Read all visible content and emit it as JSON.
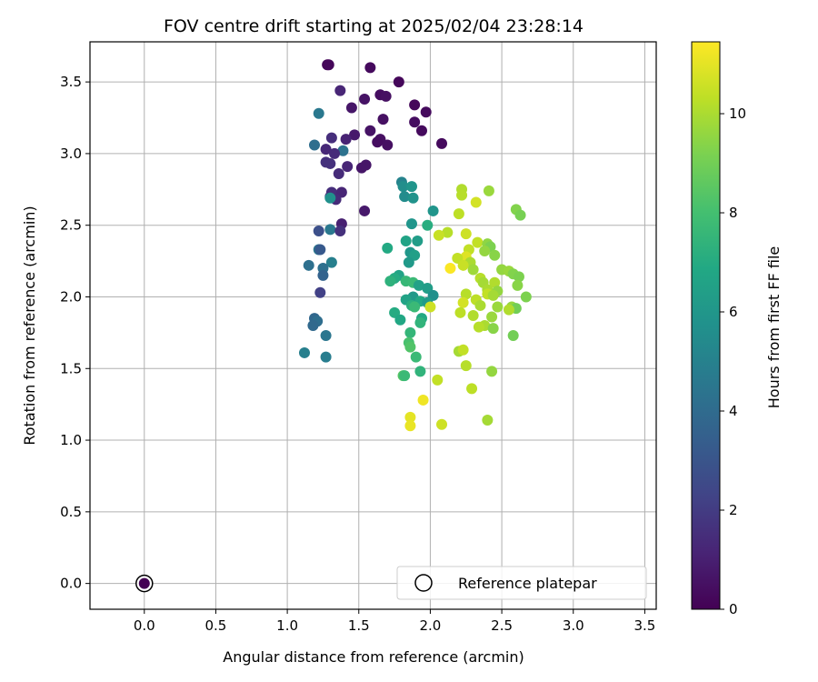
{
  "chart_data": {
    "type": "scatter",
    "title": "FOV centre drift starting at 2025/02/04 23:28:14",
    "xlabel": "Angular distance from reference (arcmin)",
    "ylabel": "Rotation from reference (arcmin)",
    "xlim": [
      -0.38,
      3.58
    ],
    "ylim": [
      -0.18,
      3.78
    ],
    "xticks": [
      0.0,
      0.5,
      1.0,
      1.5,
      2.0,
      2.5,
      3.0,
      3.5
    ],
    "xtick_labels": [
      "0.0",
      "0.5",
      "1.0",
      "1.5",
      "2.0",
      "2.5",
      "3.0",
      "3.5"
    ],
    "yticks": [
      0.0,
      0.5,
      1.0,
      1.5,
      2.0,
      2.5,
      3.0,
      3.5
    ],
    "ytick_labels": [
      "0.0",
      "0.5",
      "1.0",
      "1.5",
      "2.0",
      "2.5",
      "3.0",
      "3.5"
    ],
    "grid": true,
    "colormap": "viridis",
    "colorbar": {
      "label": "Hours from first FF file",
      "range": [
        0,
        11.45
      ],
      "ticks": [
        0,
        2,
        4,
        6,
        8,
        10
      ],
      "tick_labels": [
        "0",
        "2",
        "4",
        "6",
        "8",
        "10"
      ]
    },
    "legend": {
      "position": "bottom-right",
      "entries": [
        "Reference platepar"
      ]
    },
    "reference_point": {
      "x": 0.0,
      "y": 0.0,
      "label": "Reference platepar",
      "color": "#440154"
    },
    "points": [
      {
        "x": 1.28,
        "y": 3.62,
        "c": 0.1
      },
      {
        "x": 1.29,
        "y": 3.62,
        "c": 0.2
      },
      {
        "x": 1.58,
        "y": 3.6,
        "c": 0.3
      },
      {
        "x": 1.78,
        "y": 3.5,
        "c": 0.2
      },
      {
        "x": 1.37,
        "y": 3.44,
        "c": 1.2
      },
      {
        "x": 1.65,
        "y": 3.41,
        "c": 0.4
      },
      {
        "x": 1.69,
        "y": 3.4,
        "c": 0.5
      },
      {
        "x": 1.54,
        "y": 3.38,
        "c": 0.6
      },
      {
        "x": 1.89,
        "y": 3.34,
        "c": 0.2
      },
      {
        "x": 1.45,
        "y": 3.32,
        "c": 0.7
      },
      {
        "x": 1.97,
        "y": 3.29,
        "c": 0.3
      },
      {
        "x": 1.22,
        "y": 3.28,
        "c": 4.6
      },
      {
        "x": 1.67,
        "y": 3.24,
        "c": 0.5
      },
      {
        "x": 1.89,
        "y": 3.22,
        "c": 0.4
      },
      {
        "x": 1.94,
        "y": 3.16,
        "c": 0.3
      },
      {
        "x": 1.58,
        "y": 3.16,
        "c": 0.6
      },
      {
        "x": 1.47,
        "y": 3.13,
        "c": 0.8
      },
      {
        "x": 1.31,
        "y": 3.11,
        "c": 1.5
      },
      {
        "x": 1.41,
        "y": 3.1,
        "c": 1.1
      },
      {
        "x": 1.65,
        "y": 3.1,
        "c": 0.5
      },
      {
        "x": 1.63,
        "y": 3.08,
        "c": 0.4
      },
      {
        "x": 2.08,
        "y": 3.07,
        "c": 0.3
      },
      {
        "x": 1.19,
        "y": 3.06,
        "c": 4.1
      },
      {
        "x": 1.7,
        "y": 3.06,
        "c": 0.5
      },
      {
        "x": 1.27,
        "y": 3.03,
        "c": 1.3
      },
      {
        "x": 1.39,
        "y": 3.02,
        "c": 4.3
      },
      {
        "x": 1.33,
        "y": 3.0,
        "c": 1.4
      },
      {
        "x": 1.27,
        "y": 2.94,
        "c": 1.6
      },
      {
        "x": 1.3,
        "y": 2.93,
        "c": 1.6
      },
      {
        "x": 1.55,
        "y": 2.92,
        "c": 0.7
      },
      {
        "x": 1.42,
        "y": 2.91,
        "c": 1.2
      },
      {
        "x": 1.52,
        "y": 2.9,
        "c": 0.7
      },
      {
        "x": 1.36,
        "y": 2.86,
        "c": 1.4
      },
      {
        "x": 1.31,
        "y": 2.73,
        "c": 1.5
      },
      {
        "x": 1.38,
        "y": 2.73,
        "c": 1.2
      },
      {
        "x": 1.3,
        "y": 2.7,
        "c": 1.5
      },
      {
        "x": 1.34,
        "y": 2.68,
        "c": 1.4
      },
      {
        "x": 1.3,
        "y": 2.69,
        "c": 5.7
      },
      {
        "x": 1.54,
        "y": 2.6,
        "c": 0.8
      },
      {
        "x": 1.38,
        "y": 2.51,
        "c": 1.0
      },
      {
        "x": 1.3,
        "y": 2.47,
        "c": 4.6
      },
      {
        "x": 1.22,
        "y": 2.46,
        "c": 2.8
      },
      {
        "x": 1.37,
        "y": 2.46,
        "c": 1.6
      },
      {
        "x": 1.22,
        "y": 2.33,
        "c": 4.5
      },
      {
        "x": 1.23,
        "y": 2.33,
        "c": 3.2
      },
      {
        "x": 1.31,
        "y": 2.24,
        "c": 4.9
      },
      {
        "x": 1.15,
        "y": 2.22,
        "c": 4.2
      },
      {
        "x": 1.25,
        "y": 2.2,
        "c": 4.2
      },
      {
        "x": 1.25,
        "y": 2.15,
        "c": 3.6
      },
      {
        "x": 1.23,
        "y": 2.03,
        "c": 2.2
      },
      {
        "x": 1.19,
        "y": 1.85,
        "c": 3.8
      },
      {
        "x": 1.21,
        "y": 1.83,
        "c": 4.1
      },
      {
        "x": 1.18,
        "y": 1.8,
        "c": 3.9
      },
      {
        "x": 1.27,
        "y": 1.73,
        "c": 4.5
      },
      {
        "x": 1.12,
        "y": 1.61,
        "c": 4.9
      },
      {
        "x": 1.27,
        "y": 1.58,
        "c": 4.8
      },
      {
        "x": 1.8,
        "y": 2.8,
        "c": 5.1
      },
      {
        "x": 1.81,
        "y": 2.77,
        "c": 5.6
      },
      {
        "x": 1.87,
        "y": 2.77,
        "c": 5.9
      },
      {
        "x": 1.82,
        "y": 2.7,
        "c": 5.5
      },
      {
        "x": 1.88,
        "y": 2.69,
        "c": 5.8
      },
      {
        "x": 2.02,
        "y": 2.6,
        "c": 5.9
      },
      {
        "x": 1.87,
        "y": 2.51,
        "c": 5.9
      },
      {
        "x": 1.98,
        "y": 2.5,
        "c": 7.1
      },
      {
        "x": 1.91,
        "y": 2.39,
        "c": 6.3
      },
      {
        "x": 1.83,
        "y": 2.39,
        "c": 6.6
      },
      {
        "x": 1.7,
        "y": 2.34,
        "c": 6.9
      },
      {
        "x": 1.86,
        "y": 2.31,
        "c": 6.0
      },
      {
        "x": 1.89,
        "y": 2.29,
        "c": 6.4
      },
      {
        "x": 1.85,
        "y": 2.24,
        "c": 6.1
      },
      {
        "x": 1.78,
        "y": 2.15,
        "c": 6.6
      },
      {
        "x": 1.75,
        "y": 2.13,
        "c": 7.0
      },
      {
        "x": 1.72,
        "y": 2.11,
        "c": 7.3
      },
      {
        "x": 1.83,
        "y": 2.11,
        "c": 7.6
      },
      {
        "x": 1.88,
        "y": 2.1,
        "c": 7.7
      },
      {
        "x": 1.92,
        "y": 2.08,
        "c": 6.5
      },
      {
        "x": 1.98,
        "y": 2.06,
        "c": 6.3
      },
      {
        "x": 2.02,
        "y": 2.01,
        "c": 5.7
      },
      {
        "x": 1.88,
        "y": 2.0,
        "c": 6.1
      },
      {
        "x": 1.83,
        "y": 1.98,
        "c": 6.6
      },
      {
        "x": 1.93,
        "y": 1.97,
        "c": 6.9
      },
      {
        "x": 1.98,
        "y": 1.96,
        "c": 6.2
      },
      {
        "x": 1.87,
        "y": 1.94,
        "c": 7.2
      },
      {
        "x": 1.89,
        "y": 1.93,
        "c": 7.7
      },
      {
        "x": 1.75,
        "y": 1.89,
        "c": 7.0
      },
      {
        "x": 1.79,
        "y": 1.84,
        "c": 6.8
      },
      {
        "x": 1.94,
        "y": 1.85,
        "c": 6.9
      },
      {
        "x": 1.93,
        "y": 1.82,
        "c": 7.4
      },
      {
        "x": 1.86,
        "y": 1.75,
        "c": 7.5
      },
      {
        "x": 1.85,
        "y": 1.68,
        "c": 8.1
      },
      {
        "x": 1.86,
        "y": 1.65,
        "c": 8.3
      },
      {
        "x": 1.9,
        "y": 1.58,
        "c": 7.7
      },
      {
        "x": 1.93,
        "y": 1.48,
        "c": 7.4
      },
      {
        "x": 1.81,
        "y": 1.45,
        "c": 8.4
      },
      {
        "x": 1.82,
        "y": 1.45,
        "c": 7.7
      },
      {
        "x": 2.0,
        "y": 1.93,
        "c": 10.6
      },
      {
        "x": 2.22,
        "y": 2.75,
        "c": 10.1
      },
      {
        "x": 2.22,
        "y": 2.71,
        "c": 10.2
      },
      {
        "x": 2.41,
        "y": 2.74,
        "c": 9.7
      },
      {
        "x": 2.32,
        "y": 2.66,
        "c": 10.7
      },
      {
        "x": 2.6,
        "y": 2.61,
        "c": 9.3
      },
      {
        "x": 2.63,
        "y": 2.57,
        "c": 9.1
      },
      {
        "x": 2.2,
        "y": 2.58,
        "c": 10.3
      },
      {
        "x": 2.12,
        "y": 2.45,
        "c": 10.2
      },
      {
        "x": 2.06,
        "y": 2.43,
        "c": 10.5
      },
      {
        "x": 2.25,
        "y": 2.44,
        "c": 10.6
      },
      {
        "x": 2.33,
        "y": 2.38,
        "c": 10.4
      },
      {
        "x": 2.4,
        "y": 2.37,
        "c": 9.5
      },
      {
        "x": 2.42,
        "y": 2.35,
        "c": 9.2
      },
      {
        "x": 2.27,
        "y": 2.33,
        "c": 10.4
      },
      {
        "x": 2.38,
        "y": 2.32,
        "c": 9.6
      },
      {
        "x": 2.25,
        "y": 2.28,
        "c": 10.9
      },
      {
        "x": 2.19,
        "y": 2.27,
        "c": 10.4
      },
      {
        "x": 2.45,
        "y": 2.29,
        "c": 9.4
      },
      {
        "x": 2.28,
        "y": 2.24,
        "c": 10.0
      },
      {
        "x": 2.23,
        "y": 2.22,
        "c": 10.5
      },
      {
        "x": 2.14,
        "y": 2.2,
        "c": 11.4
      },
      {
        "x": 2.5,
        "y": 2.19,
        "c": 9.6
      },
      {
        "x": 2.3,
        "y": 2.19,
        "c": 9.8
      },
      {
        "x": 2.55,
        "y": 2.18,
        "c": 9.7
      },
      {
        "x": 2.58,
        "y": 2.16,
        "c": 9.3
      },
      {
        "x": 2.62,
        "y": 2.14,
        "c": 9.2
      },
      {
        "x": 2.35,
        "y": 2.13,
        "c": 10.2
      },
      {
        "x": 2.37,
        "y": 2.1,
        "c": 9.9
      },
      {
        "x": 2.45,
        "y": 2.1,
        "c": 10.1
      },
      {
        "x": 2.61,
        "y": 2.08,
        "c": 9.4
      },
      {
        "x": 2.4,
        "y": 2.05,
        "c": 10.0
      },
      {
        "x": 2.47,
        "y": 2.04,
        "c": 9.6
      },
      {
        "x": 2.25,
        "y": 2.02,
        "c": 10.2
      },
      {
        "x": 2.4,
        "y": 2.02,
        "c": 10.4
      },
      {
        "x": 2.44,
        "y": 2.01,
        "c": 9.9
      },
      {
        "x": 2.67,
        "y": 2.0,
        "c": 9.2
      },
      {
        "x": 2.32,
        "y": 1.98,
        "c": 10.3
      },
      {
        "x": 2.23,
        "y": 1.96,
        "c": 10.7
      },
      {
        "x": 2.35,
        "y": 1.94,
        "c": 10.0
      },
      {
        "x": 2.47,
        "y": 1.93,
        "c": 9.7
      },
      {
        "x": 2.57,
        "y": 1.93,
        "c": 9.6
      },
      {
        "x": 2.6,
        "y": 1.92,
        "c": 9.0
      },
      {
        "x": 2.55,
        "y": 1.91,
        "c": 10.1
      },
      {
        "x": 2.21,
        "y": 1.89,
        "c": 10.3
      },
      {
        "x": 2.3,
        "y": 1.87,
        "c": 10.1
      },
      {
        "x": 2.43,
        "y": 1.86,
        "c": 9.7
      },
      {
        "x": 2.38,
        "y": 1.8,
        "c": 10.0
      },
      {
        "x": 2.34,
        "y": 1.79,
        "c": 10.2
      },
      {
        "x": 2.44,
        "y": 1.78,
        "c": 9.4
      },
      {
        "x": 2.58,
        "y": 1.73,
        "c": 9.0
      },
      {
        "x": 2.2,
        "y": 1.62,
        "c": 9.9
      },
      {
        "x": 2.23,
        "y": 1.63,
        "c": 10.4
      },
      {
        "x": 2.25,
        "y": 1.52,
        "c": 10.2
      },
      {
        "x": 2.43,
        "y": 1.48,
        "c": 9.6
      },
      {
        "x": 2.05,
        "y": 1.42,
        "c": 10.4
      },
      {
        "x": 2.29,
        "y": 1.36,
        "c": 10.3
      },
      {
        "x": 1.95,
        "y": 1.28,
        "c": 11.2
      },
      {
        "x": 1.86,
        "y": 1.16,
        "c": 11.0
      },
      {
        "x": 2.4,
        "y": 1.14,
        "c": 9.9
      },
      {
        "x": 2.08,
        "y": 1.11,
        "c": 10.6
      },
      {
        "x": 1.86,
        "y": 1.1,
        "c": 11.1
      }
    ]
  }
}
